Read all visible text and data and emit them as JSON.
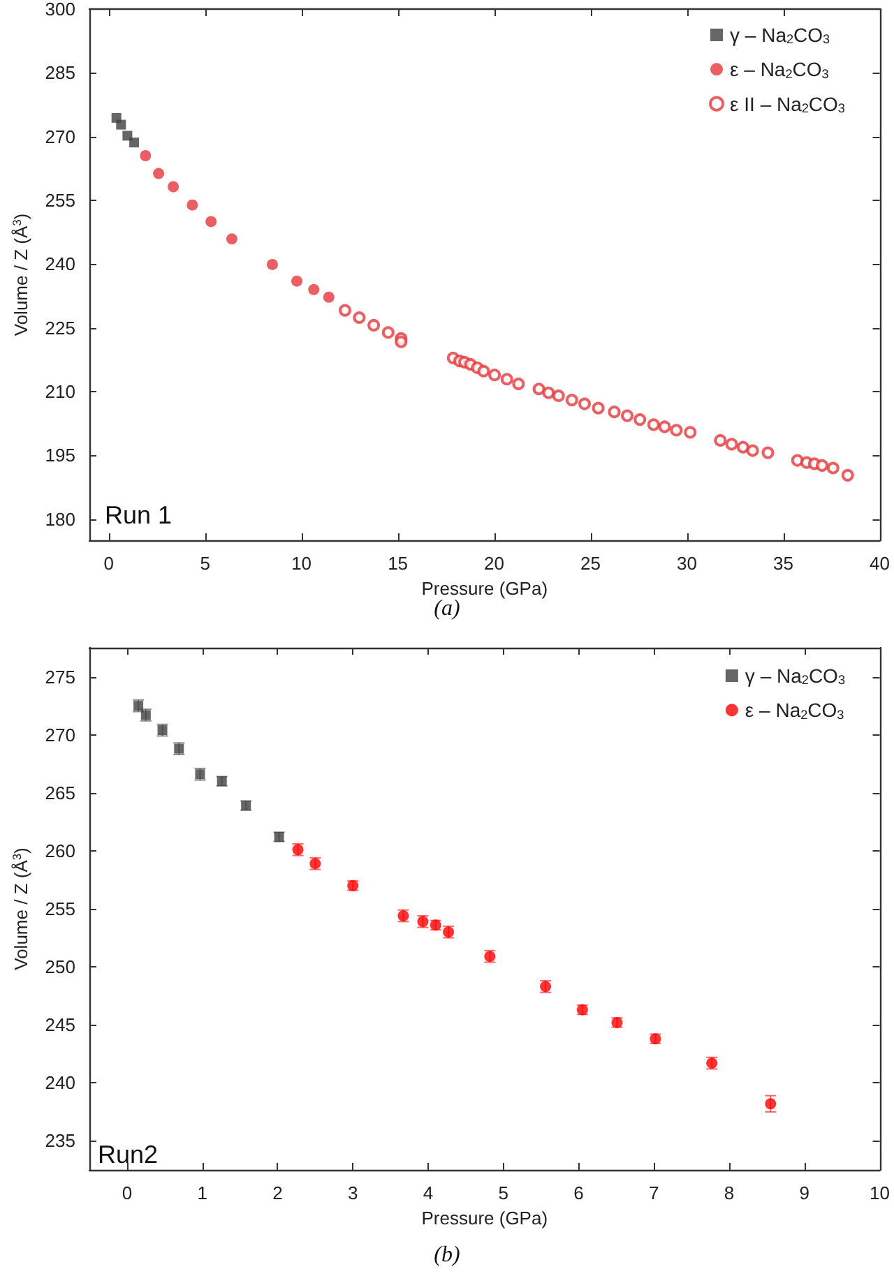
{
  "chart_data": [
    {
      "type": "scatter",
      "xlabel": "Pressure (GPa)",
      "ylabel": "Volume / Z (Å$^{3}$)",
      "annotations": [
        "Run 1",
        "(a)"
      ],
      "xlim": [
        -1,
        40
      ],
      "xticks": [
        0,
        5,
        10,
        15,
        20,
        25,
        30,
        35,
        40
      ],
      "ylim": [
        175,
        300
      ],
      "yticks": [
        180,
        195,
        210,
        225,
        240,
        255,
        270,
        285,
        300
      ],
      "legend": "top right",
      "grid": false,
      "series": [
        {
          "name": "γ – Na$_{2}$CO$_{3}$",
          "color": "#404040",
          "marker": "square",
          "x": [
            0.4,
            0.64,
            0.97,
            1.32
          ],
          "values": [
            274.4,
            272.8,
            270.2,
            268.6
          ]
        },
        {
          "name": "ε – Na$_{2}$CO$_{3}$",
          "color": "#e5383b",
          "marker": "circle",
          "x": [
            1.91,
            2.59,
            3.35,
            4.34,
            5.31,
            6.39,
            8.49,
            9.76,
            10.64,
            11.42
          ],
          "values": [
            265.5,
            261.3,
            258.2,
            253.9,
            250.0,
            245.9,
            239.9,
            236.0,
            234.0,
            232.2
          ]
        },
        {
          "name": "ε II – Na$_{2}$CO$_{3}$",
          "color": "#e5383b",
          "marker": "circle-open",
          "x": [
            12.26,
            13.0,
            13.75,
            14.5,
            15.17,
            15.17,
            17.87,
            18.2,
            18.46,
            18.77,
            19.12,
            19.45,
            20.02,
            20.66,
            21.26,
            22.32,
            22.82,
            23.34,
            24.03,
            24.69,
            25.4,
            26.23,
            26.9,
            27.56,
            28.27,
            28.84,
            29.45,
            30.17,
            31.73,
            32.32,
            32.91,
            33.41,
            34.2,
            35.73,
            36.21,
            36.61,
            37.01,
            37.58,
            38.34
          ],
          "values": [
            229.1,
            227.4,
            225.6,
            223.9,
            222.5,
            221.7,
            217.9,
            217.2,
            216.9,
            216.4,
            215.6,
            214.8,
            213.9,
            212.9,
            211.8,
            210.6,
            209.7,
            209.0,
            208.0,
            207.1,
            206.1,
            205.2,
            204.3,
            203.4,
            202.2,
            201.7,
            200.9,
            200.4,
            198.5,
            197.6,
            196.9,
            196.1,
            195.6,
            193.8,
            193.3,
            193.0,
            192.6,
            192.0,
            190.3
          ]
        }
      ]
    },
    {
      "type": "scatter",
      "xlabel": "Pressure (GPa)",
      "ylabel": "Volume / Z (Å$^{3}$)",
      "annotations": [
        "Run2",
        "(b)"
      ],
      "xlim": [
        -0.5,
        10
      ],
      "xticks": [
        0,
        1,
        2,
        3,
        4,
        5,
        6,
        7,
        8,
        9,
        10
      ],
      "ylim": [
        232.5,
        277.5
      ],
      "yticks": [
        235,
        240,
        245,
        250,
        255,
        260,
        265,
        270,
        275
      ],
      "legend": "top right",
      "grid": false,
      "series": [
        {
          "name": "γ – Na$_{2}$CO$_{3}$",
          "color": "#404040",
          "marker": "square",
          "x": [
            0.15,
            0.25,
            0.47,
            0.69,
            0.97,
            1.26,
            1.58,
            2.02
          ],
          "values": [
            272.5,
            271.7,
            270.4,
            268.8,
            266.6,
            266.0,
            263.9,
            261.2
          ],
          "errors": [
            0.5,
            0.5,
            0.5,
            0.5,
            0.5,
            0.4,
            0.4,
            0.4
          ]
        },
        {
          "name": "ε – Na$_{2}$CO$_{3}$",
          "color": "#ff0000",
          "marker": "circle",
          "x": [
            2.27,
            2.5,
            3.0,
            3.67,
            3.93,
            4.1,
            4.27,
            4.82,
            5.56,
            6.05,
            6.51,
            7.02,
            7.77,
            8.55
          ],
          "values": [
            260.1,
            258.9,
            257.0,
            254.4,
            253.9,
            253.6,
            253.0,
            250.9,
            248.3,
            246.3,
            245.2,
            243.8,
            241.7,
            238.2
          ],
          "errors": [
            0.5,
            0.5,
            0.4,
            0.5,
            0.5,
            0.4,
            0.5,
            0.5,
            0.5,
            0.4,
            0.4,
            0.4,
            0.5,
            0.7
          ]
        }
      ]
    }
  ]
}
